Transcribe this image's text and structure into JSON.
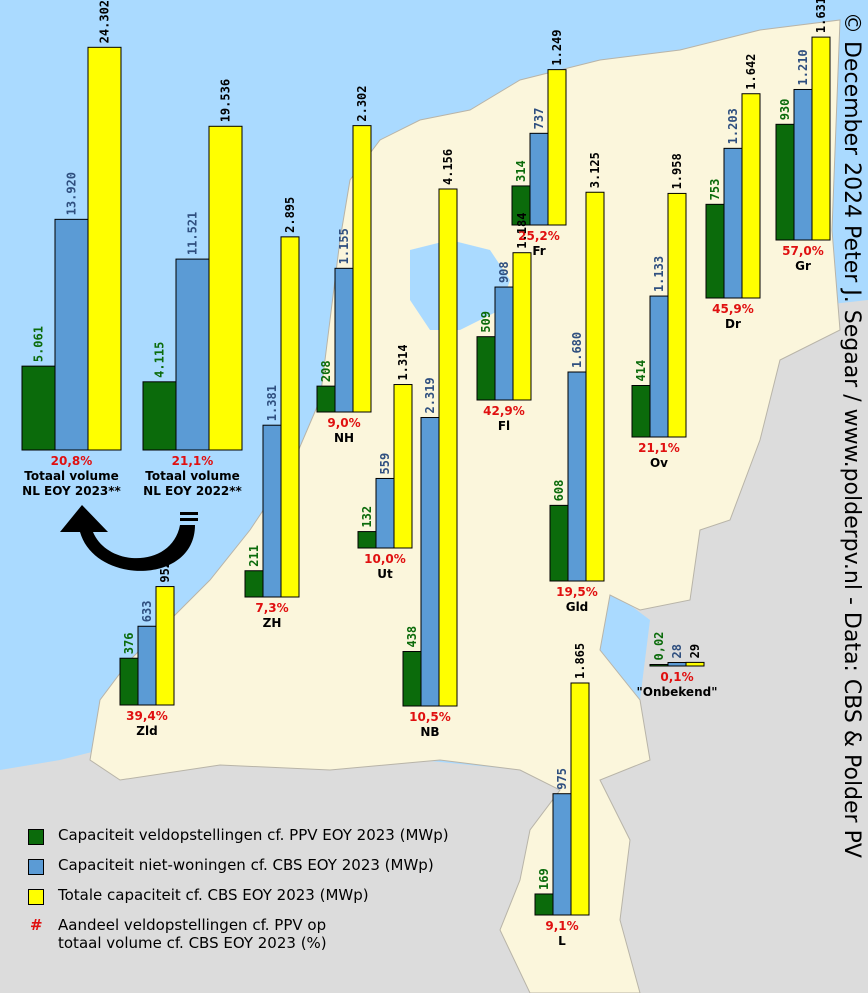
{
  "credit": "© December 2024 Peter J. Segaar / www.polderpv.nl - Data: CBS & Polder PV",
  "colors": {
    "ground": "#0b6b0b",
    "non_residential": "#5b9bd5",
    "total": "#ffff00",
    "share_text": "#e01010",
    "sea": "#aadaff",
    "land": "#fbf6dc",
    "foreign": "#dcdcdc"
  },
  "legend": {
    "ground": "Capaciteit veldopstellingen cf. PPV EOY 2023 (MWp)",
    "non_residential": "Capaciteit niet-woningen cf. CBS EOY 2023 (MWp)",
    "total": "Totale capaciteit cf. CBS EOY 2023 (MWp)",
    "share_marker": "#",
    "share_line1": "Aandeel veldopstellingen cf. PPV op",
    "share_line2": "totaal volume cf. CBS EOY 2023 (%)"
  },
  "chart_data": {
    "type": "bar",
    "series": [
      {
        "name": "Capaciteit veldopstellingen cf. PPV EOY 2023 (MWp)",
        "key": "ground"
      },
      {
        "name": "Capaciteit niet-woningen cf. CBS EOY 2023 (MWp)",
        "key": "non_residential"
      },
      {
        "name": "Totale capaciteit cf. CBS EOY 2023 (MWp)",
        "key": "total"
      }
    ],
    "groups": [
      {
        "region": "Totaal volume NL EOY 2023**",
        "label_line1": "Totaal volume",
        "label_line2": "NL EOY 2023**",
        "ground": "5.061",
        "non_residential": "13.920",
        "total": "24.302",
        "share": "20,8%"
      },
      {
        "region": "Totaal volume NL EOY 2022**",
        "label_line1": "Totaal volume",
        "label_line2": "NL EOY 2022**",
        "ground": "4.115",
        "non_residential": "11.521",
        "total": "19.536",
        "share": "21,1%"
      },
      {
        "region": "NH",
        "label_line1": "NH",
        "ground": "208",
        "non_residential": "1.155",
        "total": "2.302",
        "share": "9,0%"
      },
      {
        "region": "Fr",
        "label_line1": "Fr",
        "ground": "314",
        "non_residential": "737",
        "total": "1.249",
        "share": "25,2%"
      },
      {
        "region": "Gr",
        "label_line1": "Gr",
        "ground": "930",
        "non_residential": "1.210",
        "total": "1.631",
        "share": "57,0%"
      },
      {
        "region": "Dr",
        "label_line1": "Dr",
        "ground": "753",
        "non_residential": "1.203",
        "total": "1.642",
        "share": "45,9%"
      },
      {
        "region": "Fl",
        "label_line1": "Fl",
        "ground": "509",
        "non_residential": "908",
        "total": "1.184",
        "share": "42,9%"
      },
      {
        "region": "Ov",
        "label_line1": "Ov",
        "ground": "414",
        "non_residential": "1.133",
        "total": "1.958",
        "share": "21,1%"
      },
      {
        "region": "ZH",
        "label_line1": "ZH",
        "ground": "211",
        "non_residential": "1.381",
        "total": "2.895",
        "share": "7,3%"
      },
      {
        "region": "Ut",
        "label_line1": "Ut",
        "ground": "132",
        "non_residential": "559",
        "total": "1.314",
        "share": "10,0%"
      },
      {
        "region": "NB",
        "label_line1": "NB",
        "ground": "438",
        "non_residential": "2.319",
        "total": "4.156",
        "share": "10,5%"
      },
      {
        "region": "Gld",
        "label_line1": "Gld",
        "ground": "608",
        "non_residential": "1.680",
        "total": "3.125",
        "share": "19,5%"
      },
      {
        "region": "Zld",
        "label_line1": "Zld",
        "ground": "376",
        "non_residential": "633",
        "total": "952",
        "share": "39,4%"
      },
      {
        "region": "\"Onbekend\"",
        "label_line1": "\"Onbekend\"",
        "ground": "0,02",
        "non_residential": "28",
        "total": "29",
        "share": "0,1%"
      },
      {
        "region": "L",
        "label_line1": "L",
        "ground": "169",
        "non_residential": "975",
        "total": "1.865",
        "share": "9,1%"
      }
    ]
  }
}
